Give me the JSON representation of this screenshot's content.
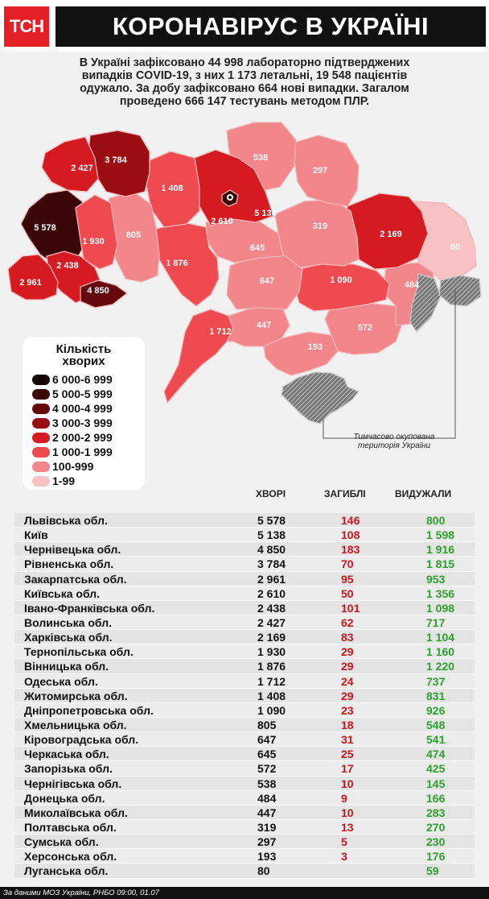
{
  "header": {
    "logo": "ТСН",
    "title": "КОРОНАВІРУС В УКРАЇНІ"
  },
  "intro": [
    "В Україні зафіксовано 44 998 лабораторно підтверджених",
    "випадків COVID-19, з них 1 173 летальні, 19 548 пацієнтів",
    "одужало. За добу зафіксовано 664 нові випадки. Загалом",
    "проведено 666 147 тестувань методом ПЛР."
  ],
  "map": {
    "labels": [
      {
        "region": "Львівська",
        "value": "5 578"
      },
      {
        "region": "Київ",
        "value": "5 138"
      },
      {
        "region": "Чернівецька",
        "value": "4 850"
      },
      {
        "region": "Рівненська",
        "value": "3 784"
      },
      {
        "region": "Закарпатська",
        "value": "2 961"
      },
      {
        "region": "Київська",
        "value": "2 610"
      },
      {
        "region": "Івано-Франківська",
        "value": "2 438"
      },
      {
        "region": "Волинська",
        "value": "2 427"
      },
      {
        "region": "Харківська",
        "value": "2 169"
      },
      {
        "region": "Тернопільська",
        "value": "1 930"
      },
      {
        "region": "Вінницька",
        "value": "1 876"
      },
      {
        "region": "Одеська",
        "value": "1 712"
      },
      {
        "region": "Житомирська",
        "value": "1 408"
      },
      {
        "region": "Дніпропетровська",
        "value": "1 090"
      },
      {
        "region": "Хмельницька",
        "value": "805"
      },
      {
        "region": "Кіровоградська",
        "value": "647"
      },
      {
        "region": "Черкаська",
        "value": "645"
      },
      {
        "region": "Запорізька",
        "value": "572"
      },
      {
        "region": "Чернігівська",
        "value": "538"
      },
      {
        "region": "Донецька",
        "value": "484"
      },
      {
        "region": "Миколаївська",
        "value": "447"
      },
      {
        "region": "Полтавська",
        "value": "319"
      },
      {
        "region": "Сумська",
        "value": "297"
      },
      {
        "region": "Херсонська",
        "value": "193"
      },
      {
        "region": "Луганська",
        "value": "80"
      }
    ],
    "occupied_note": [
      "Тимчасово окупована",
      "територія України"
    ]
  },
  "legend": {
    "title": [
      "Кількість",
      "хворих"
    ],
    "items": [
      {
        "label": "6 000-6 999",
        "color": "#120606"
      },
      {
        "label": "5 000-5 999",
        "color": "#3a0608"
      },
      {
        "label": "4 000-4 999",
        "color": "#64080d"
      },
      {
        "label": "3 000-3 999",
        "color": "#9a0d13"
      },
      {
        "label": "2 000-2 999",
        "color": "#d51a21"
      },
      {
        "label": "1 000-1 999",
        "color": "#ef4a4f"
      },
      {
        "label": "100-999",
        "color": "#f2868a"
      },
      {
        "label": "1-99",
        "color": "#f8c1c3"
      }
    ]
  },
  "table": {
    "headers": {
      "cases": "ХВОРІ",
      "deaths": "ЗАГИБЛІ",
      "recovered": "ВИДУЖАЛИ"
    },
    "rows": [
      {
        "region": "Львівська обл.",
        "cases": "5 578",
        "deaths": "146",
        "recovered": "800"
      },
      {
        "region": "Київ",
        "cases": "5 138",
        "deaths": "108",
        "recovered": "1 598"
      },
      {
        "region": "Чернівецька обл.",
        "cases": "4 850",
        "deaths": "183",
        "recovered": "1 916"
      },
      {
        "region": "Рівненська обл.",
        "cases": "3 784",
        "deaths": "70",
        "recovered": "1 815"
      },
      {
        "region": "Закарпатська обл.",
        "cases": "2 961",
        "deaths": "95",
        "recovered": "953"
      },
      {
        "region": "Київська обл.",
        "cases": "2 610",
        "deaths": "50",
        "recovered": "1 356"
      },
      {
        "region": "Івано-Франківська обл.",
        "cases": "2 438",
        "deaths": "101",
        "recovered": "1 098"
      },
      {
        "region": "Волинська обл.",
        "cases": "2 427",
        "deaths": "62",
        "recovered": "717"
      },
      {
        "region": "Харківська обл.",
        "cases": "2 169",
        "deaths": "83",
        "recovered": "1 104"
      },
      {
        "region": "Тернопільська обл.",
        "cases": "1 930",
        "deaths": "29",
        "recovered": "1 160"
      },
      {
        "region": "Вінницька обл.",
        "cases": "1 876",
        "deaths": "29",
        "recovered": "1 220"
      },
      {
        "region": "Одеська обл.",
        "cases": "1 712",
        "deaths": "24",
        "recovered": "737"
      },
      {
        "region": "Житомирська обл.",
        "cases": "1 408",
        "deaths": "29",
        "recovered": "831"
      },
      {
        "region": "Дніпропетровська обл.",
        "cases": "1 090",
        "deaths": "23",
        "recovered": "926"
      },
      {
        "region": "Хмельницька обл.",
        "cases": "805",
        "deaths": "18",
        "recovered": "548"
      },
      {
        "region": "Кіровоградська обл.",
        "cases": "647",
        "deaths": "31",
        "recovered": "541"
      },
      {
        "region": "Черкаська обл.",
        "cases": "645",
        "deaths": "25",
        "recovered": "474"
      },
      {
        "region": "Запорізька обл.",
        "cases": "572",
        "deaths": "17",
        "recovered": "425"
      },
      {
        "region": "Чернігівська обл.",
        "cases": "538",
        "deaths": "10",
        "recovered": "145"
      },
      {
        "region": "Донецька обл.",
        "cases": "484",
        "deaths": "9",
        "recovered": "166"
      },
      {
        "region": "Миколаївська обл.",
        "cases": "447",
        "deaths": "10",
        "recovered": "283"
      },
      {
        "region": "Полтавська обл.",
        "cases": "319",
        "deaths": "13",
        "recovered": "270"
      },
      {
        "region": "Сумська обл.",
        "cases": "297",
        "deaths": "5",
        "recovered": "230"
      },
      {
        "region": "Херсонська обл.",
        "cases": "193",
        "deaths": "3",
        "recovered": "176"
      },
      {
        "region": "Луганська обл.",
        "cases": "80",
        "deaths": "",
        "recovered": "59"
      }
    ]
  },
  "footer": "За даними МОЗ України, РНБО 09:00, 01.07"
}
